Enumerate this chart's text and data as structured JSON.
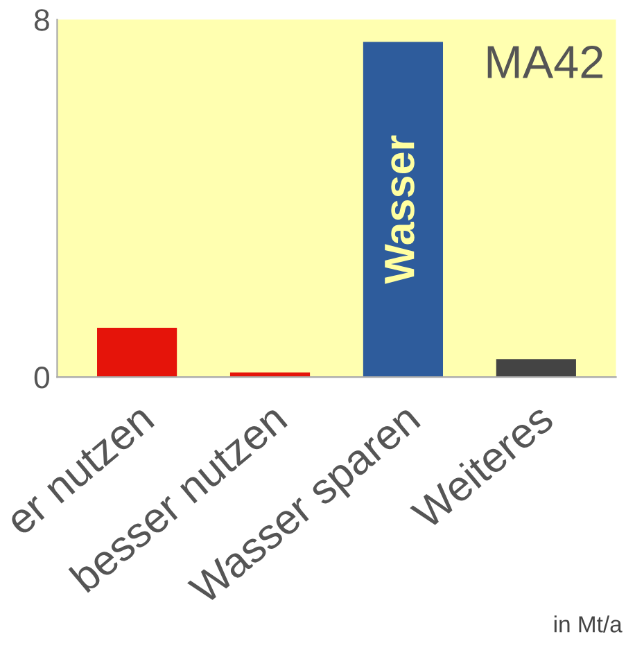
{
  "chart_data": {
    "type": "bar",
    "categories": [
      "er nutzen",
      "besser nutzen",
      "Wasser sparen",
      "Weiteres"
    ],
    "values": [
      1.1,
      0.1,
      7.5,
      0.4
    ],
    "colors": [
      "#e5140a",
      "#e5140a",
      "#2e5c9c",
      "#444444"
    ],
    "ylim": [
      0,
      8
    ],
    "yticks": [
      0,
      8
    ],
    "grid": false,
    "legend": false,
    "annotations": [
      "MA42",
      "Wasser",
      "in Mt/a"
    ]
  }
}
